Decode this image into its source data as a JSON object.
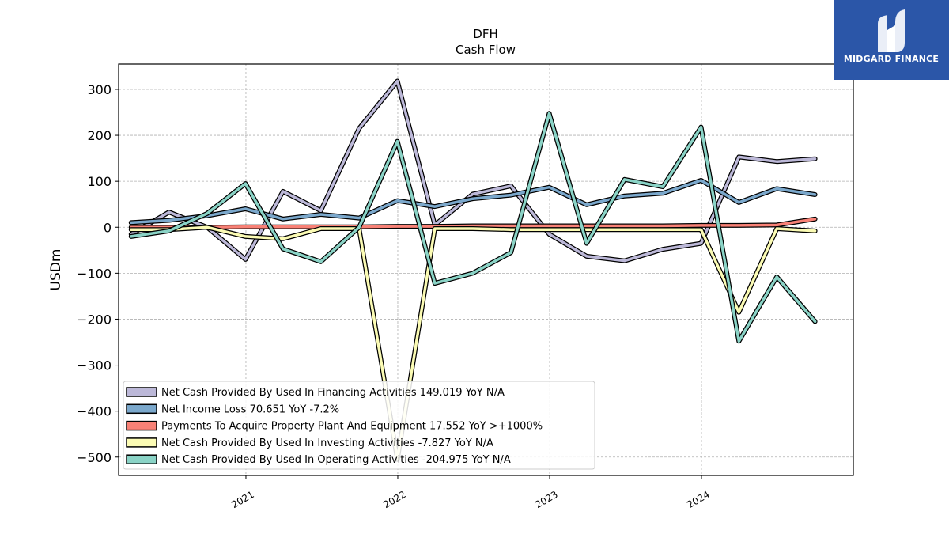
{
  "header": {
    "ticker": "DFH",
    "subtitle": "Cash Flow"
  },
  "logo": {
    "text": "MIDGARD FINANCE",
    "background": "#2b56a8"
  },
  "chart_data": {
    "type": "line",
    "title": "DFH",
    "subtitle": "Cash Flow",
    "xlabel": "",
    "ylabel": "USDm",
    "ylim": [
      -540,
      355
    ],
    "yticks": [
      300,
      200,
      100,
      0,
      -100,
      -200,
      -300,
      -400,
      -500
    ],
    "ytick_labels": [
      "300",
      "200",
      "100",
      "0",
      "−100",
      "−200",
      "−300",
      "−400",
      "−500"
    ],
    "xlim": [
      "2020-03-01",
      "2024-12-31"
    ],
    "xticks": [
      "2021-01-01",
      "2022-01-01",
      "2023-01-01",
      "2024-01-01"
    ],
    "xtick_labels": [
      "2021",
      "2022",
      "2023",
      "2024"
    ],
    "grid": true,
    "legend_position": "lower-left",
    "x": [
      "2020-03-31",
      "2020-06-30",
      "2020-09-30",
      "2020-12-31",
      "2021-03-31",
      "2021-06-30",
      "2021-09-30",
      "2021-12-31",
      "2022-03-31",
      "2022-06-30",
      "2022-09-30",
      "2022-12-31",
      "2023-03-31",
      "2023-06-30",
      "2023-09-30",
      "2023-12-31",
      "2024-03-31",
      "2024-06-30",
      "2024-09-30"
    ],
    "series": [
      {
        "name": "Net Cash Provided By Used In Financing Activities",
        "legend": "Net Cash Provided By Used In Financing Activities  149.019 YoY N/A",
        "color": "#bcb8d8",
        "values": [
          -15,
          33,
          0,
          -70,
          78,
          36,
          215,
          318,
          5,
          72,
          90,
          -15,
          -63,
          -73,
          -48,
          -35,
          153,
          143,
          149
        ]
      },
      {
        "name": "Net Income Loss",
        "legend": "Net Income Loss  70.651 YoY -7.2%",
        "color": "#7ba8cc",
        "values": [
          10,
          15,
          25,
          40,
          18,
          28,
          20,
          58,
          45,
          62,
          70,
          87,
          49,
          68,
          74,
          102,
          54,
          84,
          71
        ]
      },
      {
        "name": "Payments To Acquire Property Plant And Equipment",
        "legend": "Payments To Acquire Property Plant And Equipment  17.552 YoY >+1000%",
        "color": "#f88176",
        "values": [
          0,
          0,
          0,
          1,
          1,
          1,
          1,
          2,
          2,
          3,
          3,
          3,
          3,
          3,
          3,
          4,
          4,
          5,
          18
        ]
      },
      {
        "name": "Net Cash Provided By Used In Investing Activities",
        "legend": "Net Cash Provided By Used In Investing Activities  -7.827 YoY N/A",
        "color": "#fbfbb4",
        "values": [
          -5,
          -5,
          0,
          -20,
          -25,
          -3,
          -3,
          -505,
          -3,
          -3,
          -5,
          -5,
          -5,
          -5,
          -5,
          -5,
          -185,
          -3,
          -8
        ]
      },
      {
        "name": "Net Cash Provided By Used In Operating Activities",
        "legend": "Net Cash Provided By Used In Operating Activities  -204.975 YoY N/A",
        "color": "#8ad3c6",
        "values": [
          -20,
          -8,
          30,
          95,
          -47,
          -75,
          0,
          187,
          -122,
          -100,
          -55,
          248,
          -35,
          104,
          88,
          218,
          -248,
          -108,
          -205
        ]
      }
    ]
  }
}
